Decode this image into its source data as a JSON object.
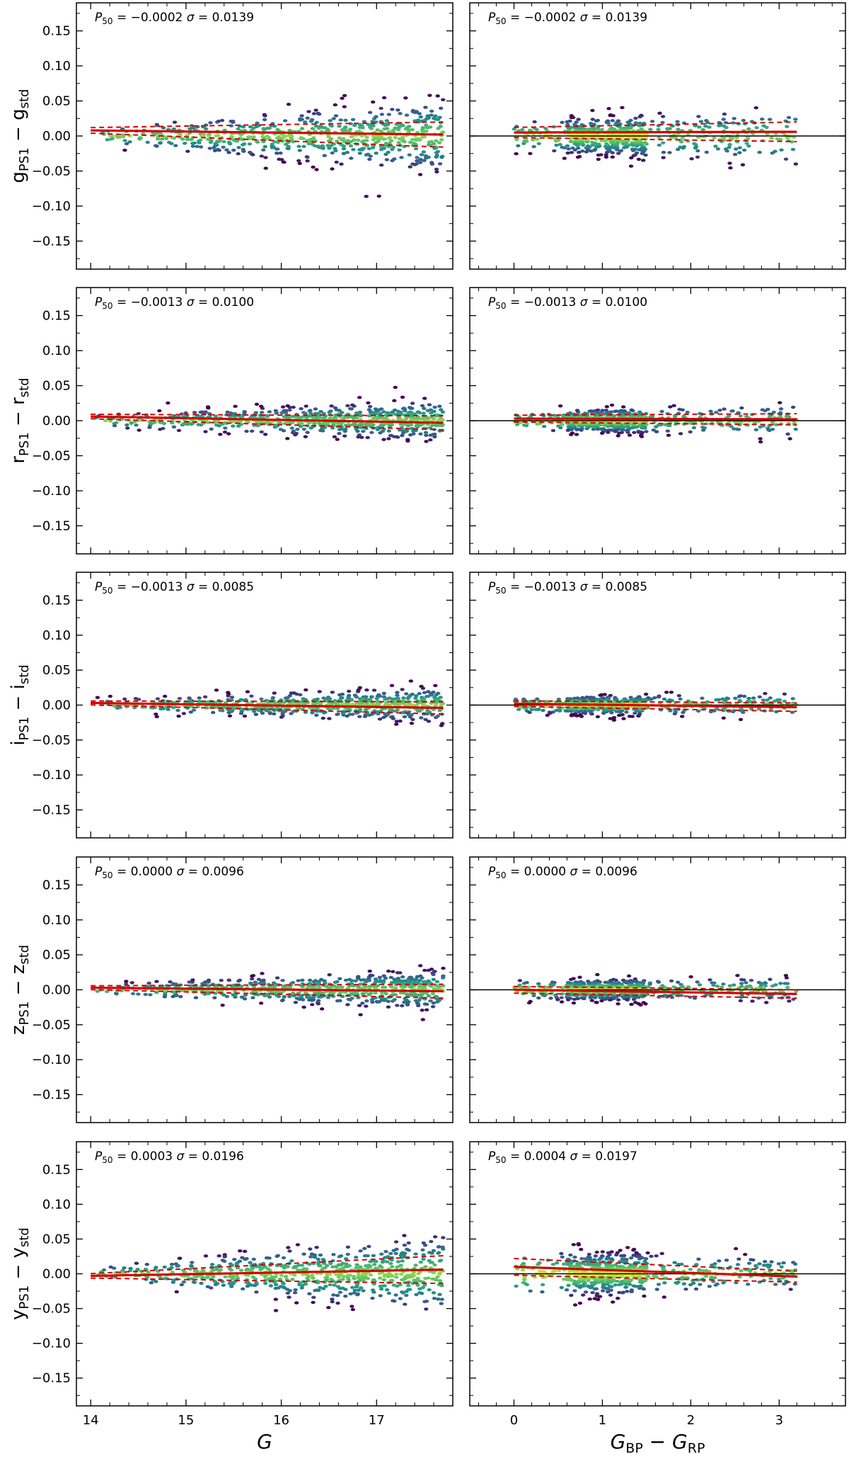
{
  "chart_data": {
    "type": "scatter",
    "description_style": "hexbin density",
    "columns": [
      {
        "xlabel_main": "G",
        "xlabel_sub1": "",
        "xlabel_mid": "",
        "xlabel_sub2": "",
        "xlim": [
          13.85,
          17.8
        ],
        "xticks": [
          14,
          15,
          16,
          17
        ],
        "xtick_labels": [
          "14",
          "15",
          "16",
          "17"
        ],
        "x_range": [
          14.0,
          17.7
        ]
      },
      {
        "xlabel_main": "G",
        "xlabel_sub1": "BP",
        "xlabel_mid": " − G",
        "xlabel_sub2": "RP",
        "xlim": [
          -0.5,
          3.75
        ],
        "xticks": [
          0,
          1,
          2,
          3
        ],
        "xtick_labels": [
          "0",
          "1",
          "2",
          "3"
        ],
        "x_range": [
          0.0,
          3.2
        ]
      }
    ],
    "ylim": [
      -0.19,
      0.19
    ],
    "yticks": [
      -0.15,
      -0.1,
      -0.05,
      0.0,
      0.05,
      0.1,
      0.15
    ],
    "ytick_labels": [
      "−0.15",
      "−0.10",
      "−0.05",
      "0.00",
      "0.05",
      "0.10",
      "0.15"
    ],
    "rows": [
      {
        "band": "g",
        "ylabel_main": "g",
        "ylabel_sub1": "PS1",
        "ylabel_mid": " − g",
        "ylabel_sub2": "std",
        "annotations": [
          {
            "p_label": "P",
            "p_sub": "50",
            "p_value": " = −0.0002",
            "s_label": "σ",
            "s_value": " = 0.0139"
          },
          {
            "p_label": "P",
            "p_sub": "50",
            "p_value": " = −0.0002",
            "s_label": "σ",
            "s_value": " = 0.0139"
          }
        ],
        "spread": [
          [
            0.01,
            0.045
          ],
          [
            0.018,
            0.035
          ]
        ],
        "median": [
          [
            0.008,
            0.002
          ],
          [
            0.005,
            0.006
          ]
        ]
      },
      {
        "band": "r",
        "ylabel_main": "r",
        "ylabel_sub1": "PS1",
        "ylabel_mid": " − r",
        "ylabel_sub2": "std",
        "annotations": [
          {
            "p_label": "P",
            "p_sub": "50",
            "p_value": " = −0.0013",
            "s_label": "σ",
            "s_value": " = 0.0100"
          },
          {
            "p_label": "P",
            "p_sub": "50",
            "p_value": " = −0.0013",
            "s_label": "σ",
            "s_value": " = 0.0100"
          }
        ],
        "spread": [
          [
            0.008,
            0.025
          ],
          [
            0.012,
            0.02
          ]
        ],
        "median": [
          [
            0.006,
            -0.003
          ],
          [
            0.003,
            0.002
          ]
        ]
      },
      {
        "band": "i",
        "ylabel_main": "i",
        "ylabel_sub1": "PS1",
        "ylabel_mid": " − i",
        "ylabel_sub2": "std",
        "annotations": [
          {
            "p_label": "P",
            "p_sub": "50",
            "p_value": " = −0.0013",
            "s_label": "σ",
            "s_value": " = 0.0085"
          },
          {
            "p_label": "P",
            "p_sub": "50",
            "p_value": " = −0.0013",
            "s_label": "σ",
            "s_value": " = 0.0085"
          }
        ],
        "spread": [
          [
            0.007,
            0.022
          ],
          [
            0.01,
            0.015
          ]
        ],
        "median": [
          [
            0.003,
            -0.004
          ],
          [
            0.002,
            -0.003
          ]
        ]
      },
      {
        "band": "z",
        "ylabel_main": "z",
        "ylabel_sub1": "PS1",
        "ylabel_mid": " − z",
        "ylabel_sub2": "std",
        "annotations": [
          {
            "p_label": "P",
            "p_sub": "50",
            "p_value": " = 0.0000",
            "s_label": "σ",
            "s_value": " = 0.0096"
          },
          {
            "p_label": "P",
            "p_sub": "50",
            "p_value": " = 0.0000",
            "s_label": "σ",
            "s_value": " = 0.0096"
          }
        ],
        "spread": [
          [
            0.007,
            0.025
          ],
          [
            0.012,
            0.015
          ]
        ],
        "median": [
          [
            0.003,
            -0.002
          ],
          [
            0.0,
            -0.006
          ]
        ]
      },
      {
        "band": "y",
        "ylabel_main": "y",
        "ylabel_sub1": "PS1",
        "ylabel_mid": " − y",
        "ylabel_sub2": "std",
        "annotations": [
          {
            "p_label": "P",
            "p_sub": "50",
            "p_value": " = 0.0003",
            "s_label": "σ",
            "s_value": " = 0.0196"
          },
          {
            "p_label": "P",
            "p_sub": "50",
            "p_value": " = 0.0004",
            "s_label": "σ",
            "s_value": " = 0.0197"
          }
        ],
        "spread": [
          [
            0.008,
            0.05
          ],
          [
            0.03,
            0.02
          ]
        ],
        "median": [
          [
            -0.003,
            0.006
          ],
          [
            0.01,
            -0.004
          ]
        ]
      }
    ],
    "colormap": [
      "#440154",
      "#3b528b",
      "#21918c",
      "#5ec962",
      "#fde725"
    ],
    "median_line_color": "#d40000",
    "zero_line_color": "#000000"
  }
}
